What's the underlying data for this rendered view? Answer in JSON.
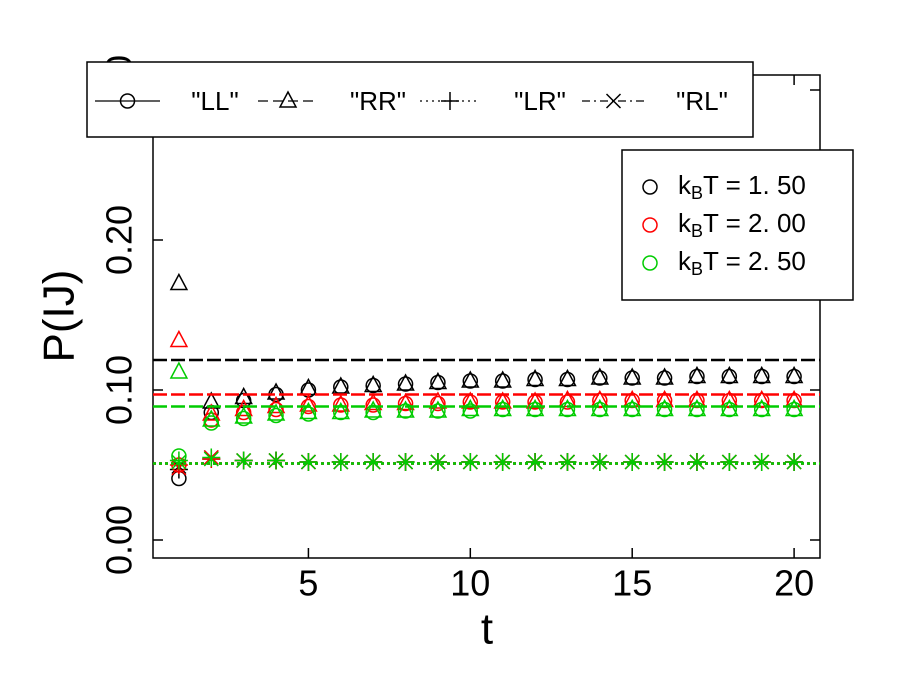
{
  "chart_data": {
    "type": "scatter",
    "x_label": "t",
    "y_label": "P(IJ)",
    "x": [
      1,
      2,
      3,
      4,
      5,
      6,
      7,
      8,
      9,
      10,
      11,
      12,
      13,
      14,
      15,
      16,
      17,
      18,
      19,
      20
    ],
    "xlim": [
      0.2,
      20.8
    ],
    "ylim": [
      -0.012,
      0.31
    ],
    "xticks": [
      5,
      10,
      15,
      20
    ],
    "yticks": [
      {
        "value": 0,
        "label": "0.00"
      },
      {
        "value": 0.1,
        "label": "0.10"
      },
      {
        "value": 0.2,
        "label": "0.20"
      },
      {
        "value": 0.3,
        "label": "0.30"
      }
    ],
    "kinds": [
      {
        "name": "\"LL\"",
        "marker": "circle",
        "dash": "solid"
      },
      {
        "name": "\"RR\"",
        "marker": "triangle",
        "dash": "dashed"
      },
      {
        "name": "\"LR\"",
        "marker": "plus",
        "dash": "dotted"
      },
      {
        "name": "\"RL\"",
        "marker": "cross",
        "dash": "dashdot"
      }
    ],
    "groups": [
      {
        "symbol": "k",
        "subscript": "B",
        "text": "T = 1. 50",
        "color": "#000000",
        "limits": [
          0.12,
          0.051
        ],
        "series": [
          [
            0.041,
            0.085,
            0.093,
            0.097,
            0.1,
            0.102,
            0.103,
            0.104,
            0.105,
            0.106,
            0.106,
            0.107,
            0.107,
            0.108,
            0.108,
            0.108,
            0.109,
            0.109,
            0.109,
            0.109
          ],
          [
            0.171,
            0.092,
            0.095,
            0.098,
            0.101,
            0.102,
            0.103,
            0.104,
            0.105,
            0.106,
            0.106,
            0.107,
            0.107,
            0.108,
            0.108,
            0.108,
            0.109,
            0.109,
            0.109,
            0.109
          ],
          [
            0.047,
            0.054,
            0.053,
            0.053,
            0.052,
            0.052,
            0.052,
            0.052,
            0.052,
            0.052,
            0.052,
            0.052,
            0.052,
            0.052,
            0.052,
            0.052,
            0.052,
            0.052,
            0.052,
            0.052
          ],
          [
            0.049,
            0.055,
            0.053,
            0.053,
            0.052,
            0.052,
            0.052,
            0.052,
            0.052,
            0.052,
            0.052,
            0.052,
            0.052,
            0.052,
            0.052,
            0.052,
            0.052,
            0.052,
            0.052,
            0.052
          ]
        ]
      },
      {
        "symbol": "k",
        "subscript": "B",
        "text": "T = 2. 00",
        "color": "#ff0000",
        "limits": [
          0.097,
          0.051
        ],
        "series": [
          [
            0.05,
            0.08,
            0.085,
            0.087,
            0.089,
            0.09,
            0.09,
            0.091,
            0.091,
            0.092,
            0.092,
            0.092,
            0.092,
            0.093,
            0.093,
            0.093,
            0.093,
            0.093,
            0.093,
            0.093
          ],
          [
            0.133,
            0.084,
            0.087,
            0.089,
            0.09,
            0.09,
            0.091,
            0.091,
            0.092,
            0.092,
            0.092,
            0.092,
            0.093,
            0.093,
            0.093,
            0.093,
            0.093,
            0.093,
            0.093,
            0.093
          ],
          [
            0.05,
            0.054,
            0.053,
            0.053,
            0.052,
            0.052,
            0.052,
            0.052,
            0.052,
            0.052,
            0.052,
            0.052,
            0.052,
            0.052,
            0.052,
            0.052,
            0.052,
            0.052,
            0.052,
            0.052
          ],
          [
            0.048,
            0.055,
            0.053,
            0.053,
            0.052,
            0.052,
            0.052,
            0.052,
            0.052,
            0.052,
            0.052,
            0.052,
            0.052,
            0.052,
            0.052,
            0.052,
            0.052,
            0.052,
            0.052,
            0.052
          ]
        ]
      },
      {
        "symbol": "k",
        "subscript": "B",
        "text": "T = 2. 50",
        "color": "#00cc00",
        "limits": [
          0.089,
          0.051
        ],
        "series": [
          [
            0.056,
            0.078,
            0.081,
            0.083,
            0.084,
            0.085,
            0.085,
            0.086,
            0.086,
            0.086,
            0.087,
            0.087,
            0.087,
            0.087,
            0.087,
            0.087,
            0.087,
            0.087,
            0.087,
            0.087
          ],
          [
            0.112,
            0.08,
            0.082,
            0.084,
            0.085,
            0.085,
            0.086,
            0.086,
            0.086,
            0.087,
            0.087,
            0.087,
            0.087,
            0.087,
            0.087,
            0.087,
            0.087,
            0.087,
            0.087,
            0.087
          ],
          [
            0.053,
            0.055,
            0.053,
            0.053,
            0.052,
            0.052,
            0.052,
            0.052,
            0.052,
            0.052,
            0.052,
            0.052,
            0.052,
            0.052,
            0.052,
            0.052,
            0.052,
            0.052,
            0.052,
            0.052
          ],
          [
            0.052,
            0.054,
            0.053,
            0.053,
            0.052,
            0.052,
            0.052,
            0.052,
            0.052,
            0.052,
            0.052,
            0.052,
            0.052,
            0.052,
            0.052,
            0.052,
            0.052,
            0.052,
            0.052,
            0.052
          ]
        ]
      }
    ]
  }
}
